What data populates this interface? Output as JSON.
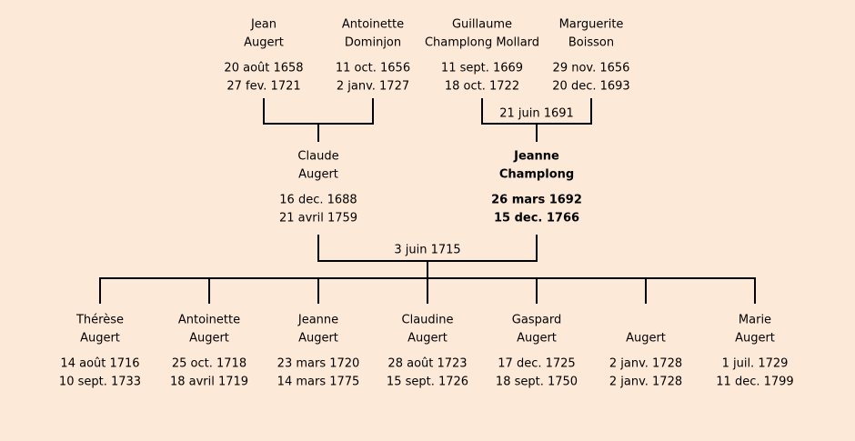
{
  "paternal_grandparents": {
    "persons": [
      {
        "given": "Jean",
        "surname": "Augert",
        "birth": "20 août 1658",
        "death": "27 fev. 1721"
      },
      {
        "given": "Antoinette",
        "surname": "Dominjon",
        "birth": "11 oct. 1656",
        "death": "2 janv. 1727"
      }
    ]
  },
  "maternal_grandparents": {
    "persons": [
      {
        "given": "Guillaume",
        "surname": "Champlong Mollard",
        "birth": "11 sept. 1669",
        "death": "18 oct. 1722"
      },
      {
        "given": "Marguerite",
        "surname": "Boisson",
        "birth": "29 nov. 1656",
        "death": "20 dec. 1693"
      }
    ],
    "marriage": "21 juin 1691"
  },
  "parents": {
    "persons": [
      {
        "given": "Claude",
        "surname": "Augert",
        "birth": "16 dec. 1688",
        "death": "21 avril 1759"
      },
      {
        "given": "Jeanne",
        "surname": "Champlong",
        "birth": "26 mars 1692",
        "death": "15 dec. 1766"
      }
    ],
    "marriage": "3 juin 1715"
  },
  "children": [
    {
      "given": "Thérèse",
      "surname": "Augert",
      "birth": "14 août 1716",
      "death": "10 sept. 1733"
    },
    {
      "given": "Antoinette",
      "surname": "Augert",
      "birth": "25 oct. 1718",
      "death": "18 avril 1719"
    },
    {
      "given": "Jeanne",
      "surname": "Augert",
      "birth": "23 mars 1720",
      "death": "14 mars 1775"
    },
    {
      "given": "Claudine",
      "surname": "Augert",
      "birth": "28 août 1723",
      "death": "15 sept. 1726"
    },
    {
      "given": "Gaspard",
      "surname": "Augert",
      "birth": "17 dec. 1725",
      "death": "18 sept. 1750"
    },
    {
      "surname": "Augert",
      "birth": "2 janv. 1728",
      "death": "2 janv. 1728"
    },
    {
      "given": "Marie",
      "surname": "Augert",
      "birth": "1 juil. 1729",
      "death": "11 dec. 1799"
    }
  ]
}
